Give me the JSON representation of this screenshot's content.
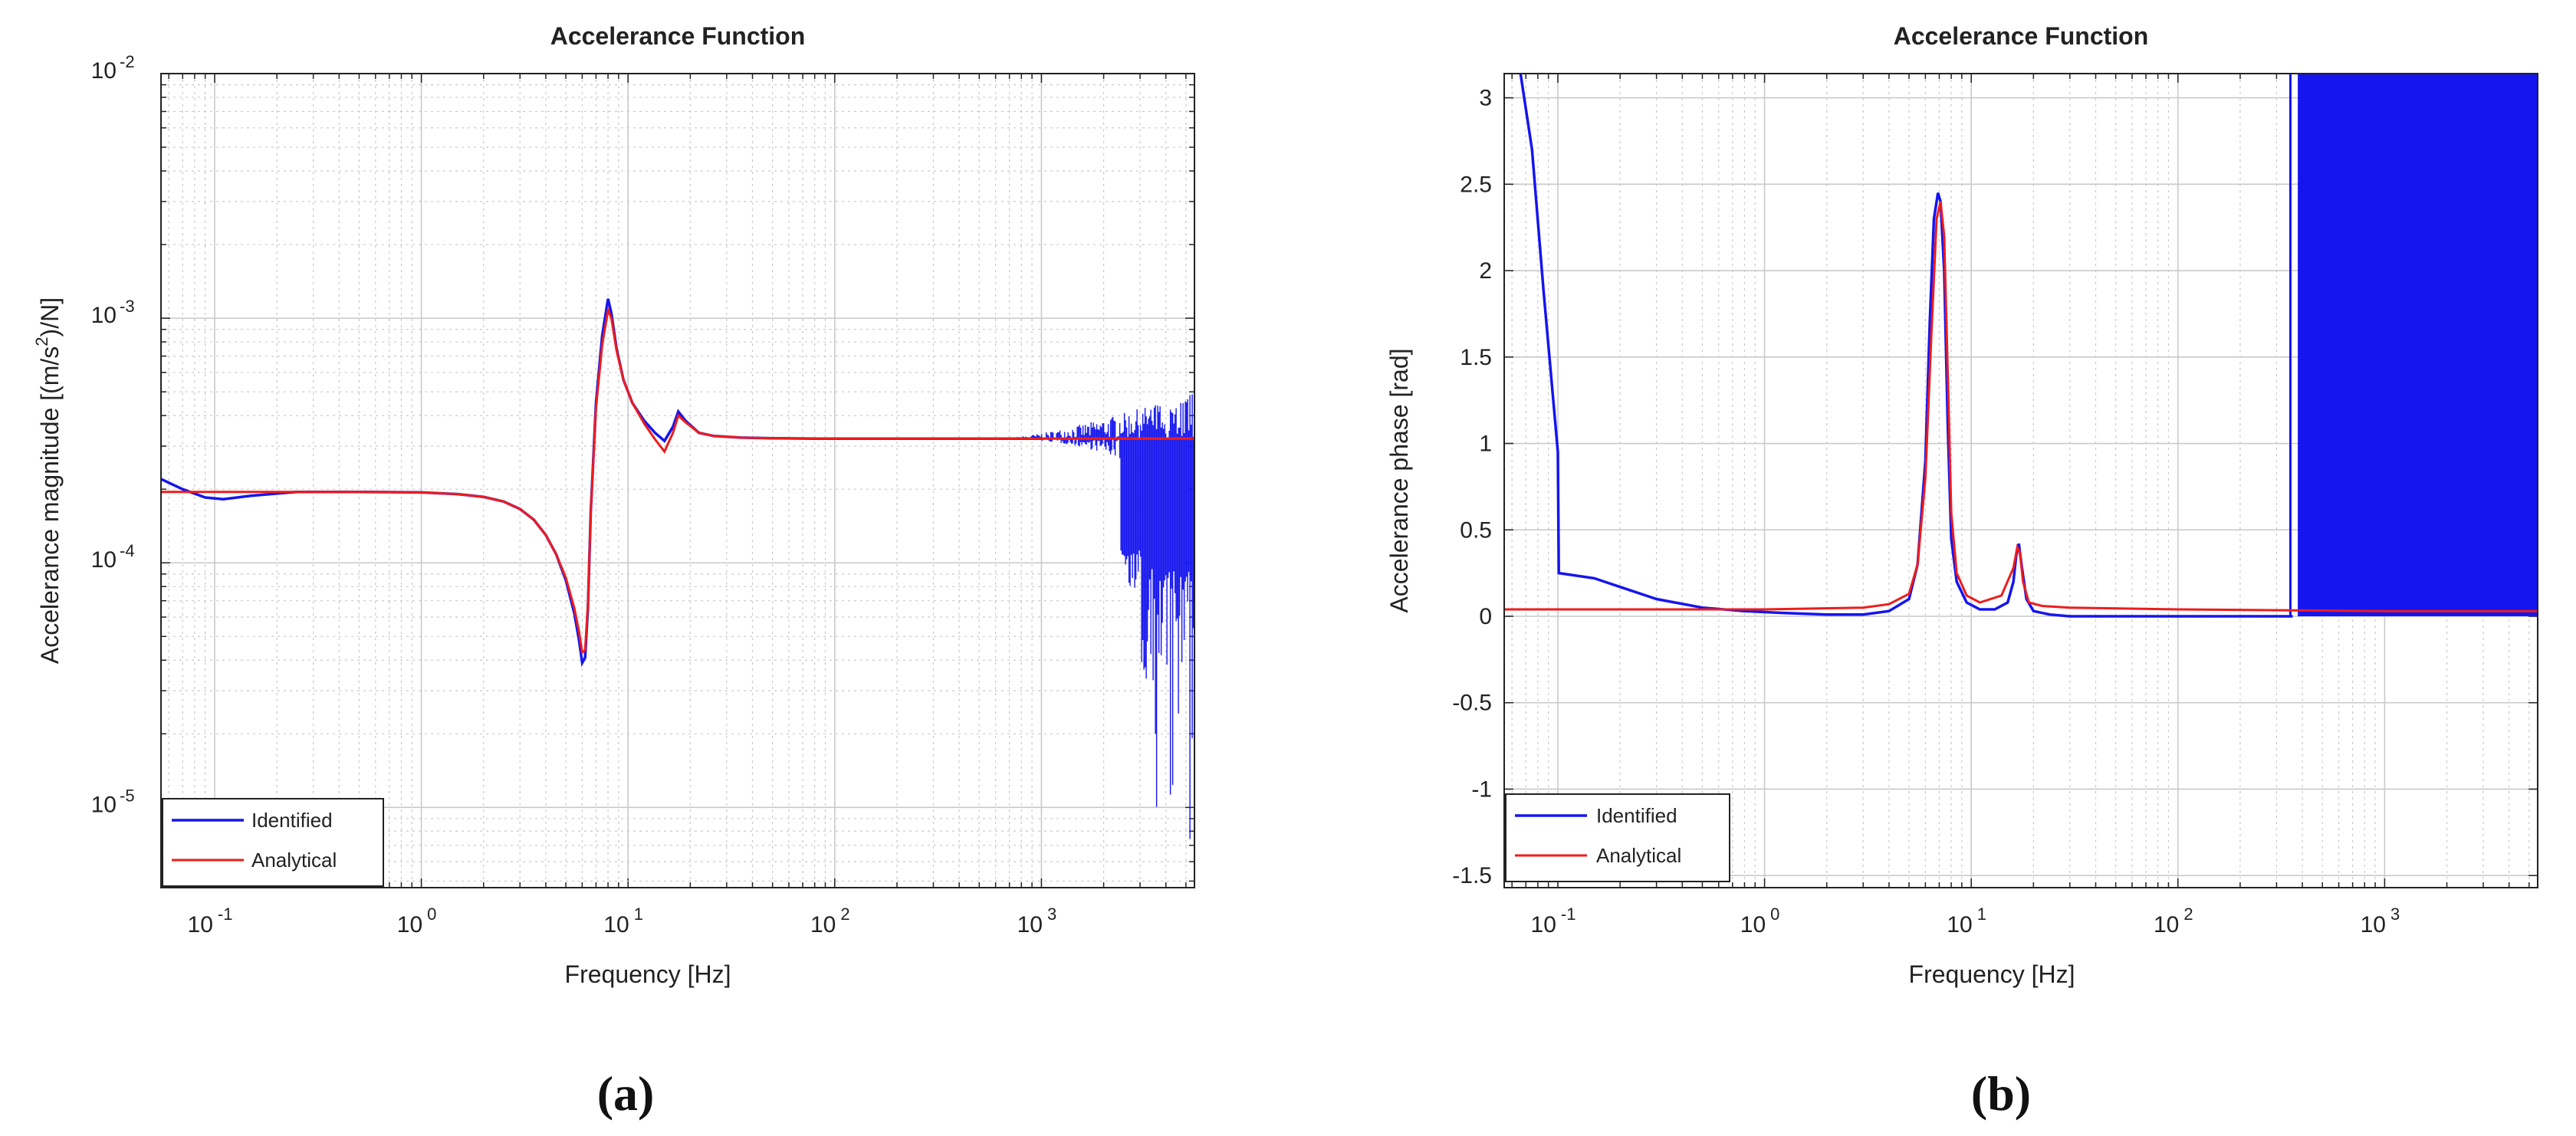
{
  "figure": {
    "panel_a_label": "(a)",
    "panel_b_label": "(b)"
  },
  "colors": {
    "identified": "#1515ef",
    "analytical": "#ee1c1c",
    "grid": "#c9c9c9",
    "axes": "#222222"
  },
  "chart_data": [
    {
      "type": "line",
      "title": "Accelerance Function",
      "xlabel": "Frequency [Hz]",
      "ylabel": "Accelerance magnitude [(m/s²)/N]",
      "ylabel_main": "Accelerance magnitude [(m/s",
      "ylabel_sup": "2",
      "ylabel_end": ")/N]",
      "xscale": "log",
      "yscale": "log",
      "xlim": [
        0.055,
        5500
      ],
      "ylim": [
        4.7e-06,
        0.01
      ],
      "grid": true,
      "legend_position": "bottom-left",
      "x_ticks": [
        {
          "value": 0.1,
          "base": "10",
          "exp": "-1"
        },
        {
          "value": 1,
          "base": "10",
          "exp": "0"
        },
        {
          "value": 10,
          "base": "10",
          "exp": "1"
        },
        {
          "value": 100,
          "base": "10",
          "exp": "2"
        },
        {
          "value": 1000,
          "base": "10",
          "exp": "3"
        }
      ],
      "y_ticks": [
        {
          "value": 1e-05,
          "base": "10",
          "exp": "-5"
        },
        {
          "value": 0.0001,
          "base": "10",
          "exp": "-4"
        },
        {
          "value": 0.001,
          "base": "10",
          "exp": "-3"
        },
        {
          "value": 0.01,
          "base": "10",
          "exp": "-2"
        }
      ],
      "series": [
        {
          "name": "Identified",
          "x": [
            0.055,
            0.07,
            0.09,
            0.11,
            0.15,
            0.25,
            0.5,
            1,
            1.5,
            2,
            2.5,
            3,
            3.5,
            4,
            4.5,
            5,
            5.5,
            5.8,
            6.0,
            6.2,
            6.4,
            6.6,
            7,
            7.5,
            8,
            8.3,
            8.8,
            9.5,
            10.5,
            12,
            13.5,
            15,
            16.5,
            17.5,
            19,
            22,
            26,
            35,
            50,
            80,
            150,
            300,
            600,
            1000
          ],
          "y": [
            0.00022,
            0.0002,
            0.000185,
            0.000182,
            0.000188,
            0.000195,
            0.000195,
            0.000194,
            0.000191,
            0.000186,
            0.000178,
            0.000166,
            0.00015,
            0.00013,
            0.000108,
            8.5e-05,
            6.2e-05,
            4.8e-05,
            3.9e-05,
            4.1e-05,
            6.6e-05,
            0.00016,
            0.00045,
            0.00085,
            0.0012,
            0.00105,
            0.00075,
            0.00056,
            0.00045,
            0.00038,
            0.00034,
            0.000315,
            0.00036,
            0.000415,
            0.00038,
            0.00034,
            0.00033,
            0.000325,
            0.000323,
            0.000322,
            0.000322,
            0.000322,
            0.000322,
            0.000322
          ],
          "noise_range_hz": [
            600,
            5500
          ],
          "noise_description": "high-frequency noise band"
        },
        {
          "name": "Analytical",
          "x": [
            0.055,
            0.1,
            0.5,
            1,
            1.5,
            2,
            2.5,
            3,
            3.5,
            4,
            4.5,
            5,
            5.5,
            5.8,
            6.0,
            6.2,
            6.4,
            6.6,
            7,
            7.5,
            8,
            8.3,
            8.8,
            9.5,
            10.5,
            12,
            13.5,
            15,
            16.5,
            17.5,
            19,
            22,
            26,
            35,
            50,
            80,
            150,
            300,
            1000,
            5500
          ],
          "y": [
            0.000195,
            0.000195,
            0.000195,
            0.000194,
            0.000191,
            0.000186,
            0.000178,
            0.000166,
            0.00015,
            0.00013,
            0.000108,
            8.7e-05,
            6.5e-05,
            5.2e-05,
            4.3e-05,
            4.4e-05,
            6.8e-05,
            0.00016,
            0.00043,
            0.00078,
            0.00108,
            0.001,
            0.00074,
            0.00056,
            0.00045,
            0.00037,
            0.00032,
            0.000285,
            0.00034,
            0.0004,
            0.000375,
            0.00034,
            0.00033,
            0.000325,
            0.000323,
            0.000322,
            0.000322,
            0.000322,
            0.000322,
            0.000322
          ]
        }
      ]
    },
    {
      "type": "line",
      "title": "Accelerance Function",
      "xlabel": "Frequency [Hz]",
      "ylabel": "Accelerance phase [rad]",
      "xscale": "log",
      "yscale": "linear",
      "xlim": [
        0.055,
        5500
      ],
      "ylim": [
        -1.57,
        3.14
      ],
      "grid": true,
      "legend_position": "bottom-left",
      "x_ticks": [
        {
          "value": 0.1,
          "base": "10",
          "exp": "-1"
        },
        {
          "value": 1,
          "base": "10",
          "exp": "0"
        },
        {
          "value": 10,
          "base": "10",
          "exp": "1"
        },
        {
          "value": 100,
          "base": "10",
          "exp": "2"
        },
        {
          "value": 1000,
          "base": "10",
          "exp": "3"
        }
      ],
      "y_ticks": [
        "-1.5",
        "-1",
        "-0.5",
        "0",
        "0.5",
        "1",
        "1.5",
        "2",
        "2.5",
        "3"
      ],
      "series": [
        {
          "name": "Identified",
          "x": [
            0.066,
            0.075,
            0.085,
            0.1,
            0.101,
            0.15,
            0.2,
            0.3,
            0.5,
            0.8,
            1.2,
            2,
            3,
            4,
            5,
            5.5,
            6,
            6.3,
            6.6,
            6.9,
            7.1,
            7.4,
            7.7,
            8,
            8.5,
            9.5,
            11,
            13,
            15,
            16,
            16.5,
            17,
            17.5,
            18.5,
            20,
            24,
            30,
            50,
            100,
            200,
            350,
            359
          ],
          "y": [
            3.14,
            2.7,
            1.9,
            0.95,
            0.25,
            0.22,
            0.17,
            0.1,
            0.05,
            0.03,
            0.02,
            0.01,
            0.01,
            0.03,
            0.1,
            0.3,
            0.9,
            1.7,
            2.3,
            2.45,
            2.4,
            2.0,
            1.1,
            0.45,
            0.2,
            0.08,
            0.04,
            0.04,
            0.08,
            0.2,
            0.35,
            0.42,
            0.3,
            0.1,
            0.03,
            0.01,
            0.0,
            0.0,
            0.0,
            0.0,
            0.0,
            0.0
          ],
          "wrap_vertical_at_hz": 350,
          "dense_band_range_hz": [
            380,
            5500
          ],
          "dense_band_ylim": [
            0,
            3.14
          ]
        },
        {
          "name": "Analytical",
          "x": [
            0.055,
            1,
            3,
            4,
            5,
            5.5,
            6,
            6.4,
            6.8,
            7.1,
            7.4,
            7.7,
            8,
            8.5,
            9.5,
            11,
            14,
            16,
            16.7,
            17.2,
            17.8,
            19,
            22,
            30,
            100,
            1000,
            5500
          ],
          "y": [
            0.04,
            0.04,
            0.05,
            0.07,
            0.13,
            0.3,
            0.8,
            1.6,
            2.3,
            2.4,
            2.2,
            1.4,
            0.6,
            0.25,
            0.12,
            0.08,
            0.12,
            0.28,
            0.4,
            0.37,
            0.2,
            0.08,
            0.06,
            0.05,
            0.04,
            0.03,
            0.03
          ]
        }
      ]
    }
  ]
}
